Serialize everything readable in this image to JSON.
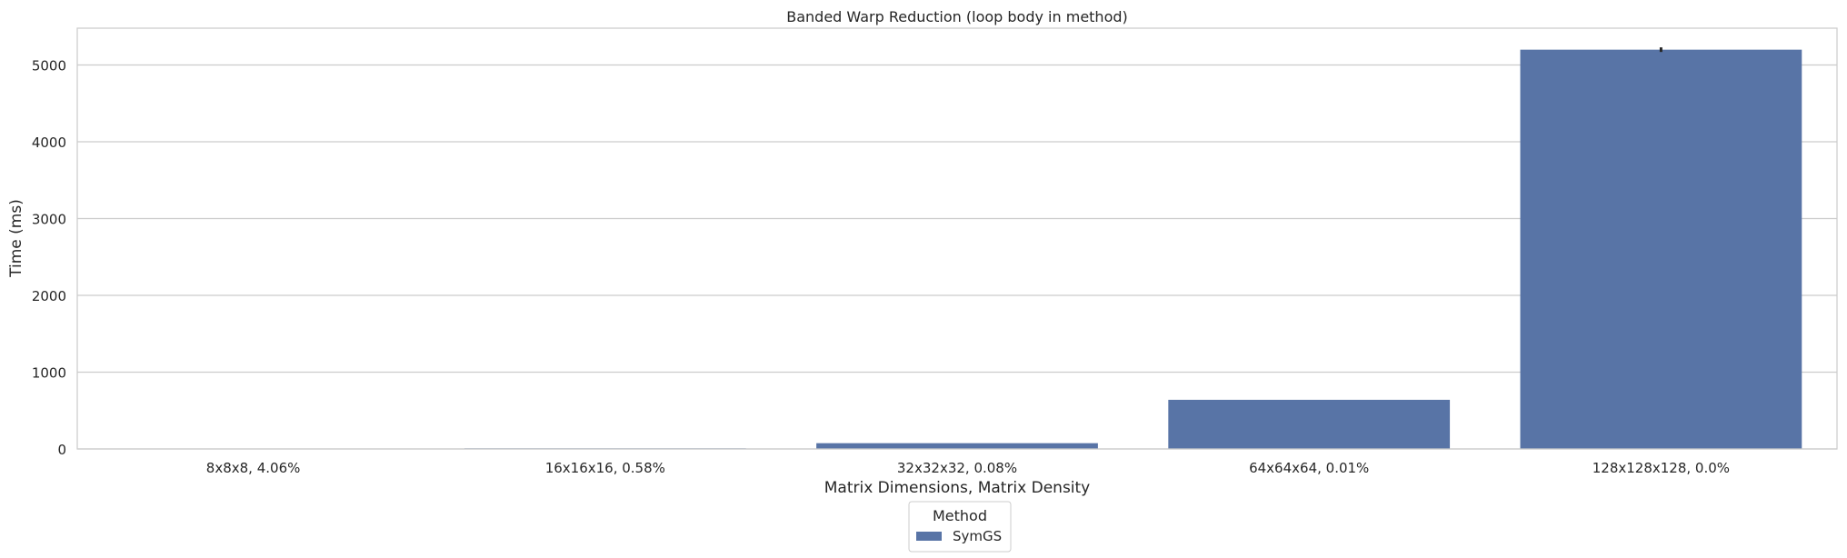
{
  "colors": {
    "bar": "#5874a6",
    "grid": "#cccccc",
    "axes_border": "#cccccc",
    "text": "#262626",
    "error_bar": "#262626"
  },
  "chart_data": {
    "type": "bar",
    "title": "Banded Warp Reduction (loop body in method)",
    "xlabel": "Matrix Dimensions, Matrix Density",
    "ylabel": "Time (ms)",
    "categories": [
      "8x8x8, 4.06%",
      "16x16x16, 0.58%",
      "32x32x32, 0.08%",
      "64x64x64, 0.01%",
      "128x128x128, 0.0%"
    ],
    "series": [
      {
        "name": "SymGS",
        "values": [
          1,
          8,
          75,
          640,
          5200
        ]
      }
    ],
    "error_bar_extent": [
      0,
      0,
      0,
      0,
      30
    ],
    "ylim": [
      0,
      5480
    ],
    "yticks": [
      0,
      1000,
      2000,
      3000,
      4000,
      5000
    ],
    "grid": true,
    "legend": {
      "title": "Method",
      "placement": "bottom-center"
    }
  }
}
